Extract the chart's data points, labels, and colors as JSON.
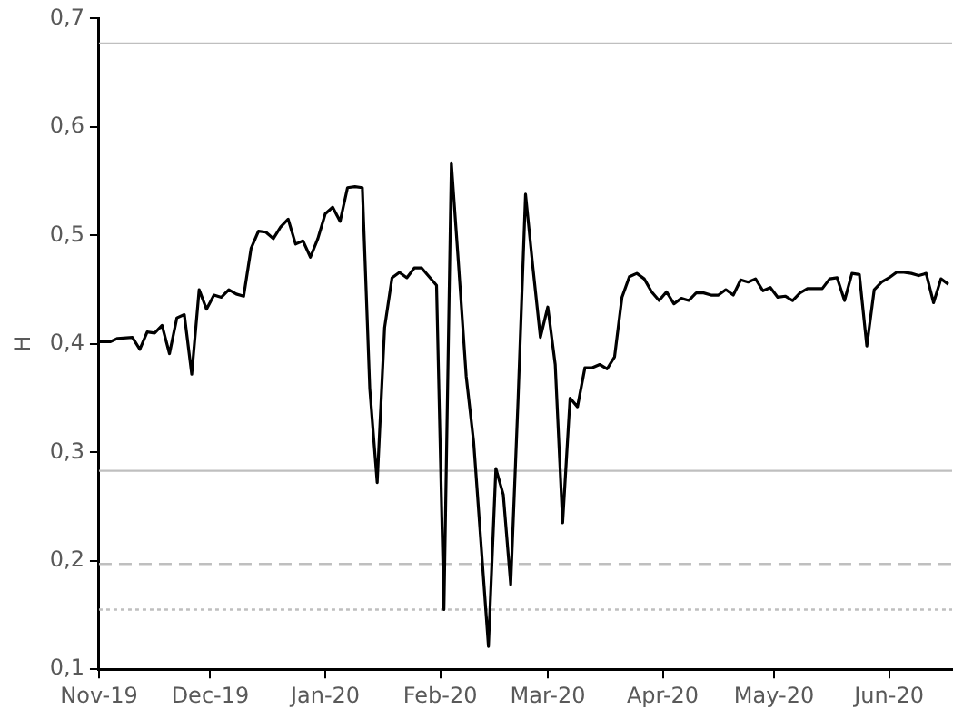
{
  "chart_data": {
    "type": "line",
    "ylabel": "H",
    "x": [
      "2019-11-01",
      "2019-11-04",
      "2019-11-06",
      "2019-11-10",
      "2019-11-12",
      "2019-11-14",
      "2019-11-16",
      "2019-11-18",
      "2019-11-20",
      "2019-11-22",
      "2019-11-24",
      "2019-11-26",
      "2019-11-28",
      "2019-11-30",
      "2019-12-02",
      "2019-12-04",
      "2019-12-06",
      "2019-12-08",
      "2019-12-10",
      "2019-12-12",
      "2019-12-14",
      "2019-12-16",
      "2019-12-18",
      "2019-12-20",
      "2019-12-22",
      "2019-12-24",
      "2019-12-26",
      "2019-12-28",
      "2019-12-30",
      "2020-01-01",
      "2020-01-03",
      "2020-01-05",
      "2020-01-07",
      "2020-01-09",
      "2020-01-11",
      "2020-01-13",
      "2020-01-15",
      "2020-01-17",
      "2020-01-19",
      "2020-01-21",
      "2020-01-23",
      "2020-01-25",
      "2020-01-27",
      "2020-01-29",
      "2020-01-31",
      "2020-02-02",
      "2020-02-04",
      "2020-02-06",
      "2020-02-08",
      "2020-02-10",
      "2020-02-14",
      "2020-02-16",
      "2020-02-18",
      "2020-02-20",
      "2020-02-22",
      "2020-02-24",
      "2020-02-26",
      "2020-02-28",
      "2020-03-01",
      "2020-03-03",
      "2020-03-05",
      "2020-03-07",
      "2020-03-09",
      "2020-03-11",
      "2020-03-13",
      "2020-03-15",
      "2020-03-17",
      "2020-03-19",
      "2020-03-21",
      "2020-03-23",
      "2020-03-25",
      "2020-03-27",
      "2020-03-29",
      "2020-03-31",
      "2020-04-02",
      "2020-04-04",
      "2020-04-06",
      "2020-04-08",
      "2020-04-10",
      "2020-04-12",
      "2020-04-14",
      "2020-04-16",
      "2020-04-18",
      "2020-04-20",
      "2020-04-22",
      "2020-04-24",
      "2020-04-26",
      "2020-04-28",
      "2020-04-30",
      "2020-05-02",
      "2020-05-04",
      "2020-05-06",
      "2020-05-08",
      "2020-05-10",
      "2020-05-12",
      "2020-05-14",
      "2020-05-16",
      "2020-05-18",
      "2020-05-20",
      "2020-05-22",
      "2020-05-24",
      "2020-05-26",
      "2020-05-28",
      "2020-05-30",
      "2020-06-01",
      "2020-06-03",
      "2020-06-05",
      "2020-06-07",
      "2020-06-09",
      "2020-06-11",
      "2020-06-13",
      "2020-06-15",
      "2020-06-17"
    ],
    "series": [
      {
        "color": "#000000",
        "values": [
          0.402,
          0.402,
          0.405,
          0.406,
          0.395,
          0.411,
          0.41,
          0.417,
          0.391,
          0.424,
          0.427,
          0.372,
          0.45,
          0.432,
          0.445,
          0.443,
          0.45,
          0.446,
          0.444,
          0.488,
          0.504,
          0.503,
          0.497,
          0.508,
          0.515,
          0.492,
          0.495,
          0.48,
          0.497,
          0.52,
          0.526,
          0.513,
          0.544,
          0.545,
          0.544,
          0.359,
          0.272,
          0.415,
          0.461,
          0.466,
          0.461,
          0.47,
          0.47,
          0.462,
          0.454,
          0.155,
          0.567,
          0.47,
          0.37,
          0.31,
          0.121,
          0.285,
          0.261,
          0.178,
          0.35,
          0.538,
          0.47,
          0.406,
          0.434,
          0.381,
          0.235,
          0.35,
          0.342,
          0.378,
          0.378,
          0.381,
          0.377,
          0.388,
          0.443,
          0.462,
          0.465,
          0.46,
          0.448,
          0.44,
          0.448,
          0.437,
          0.442,
          0.44,
          0.447,
          0.447,
          0.445,
          0.445,
          0.45,
          0.445,
          0.459,
          0.457,
          0.46,
          0.449,
          0.452,
          0.443,
          0.444,
          0.44,
          0.447,
          0.451,
          0.451,
          0.451,
          0.46,
          0.461,
          0.44,
          0.465,
          0.464,
          0.398,
          0.45,
          0.457,
          0.461,
          0.466,
          0.466,
          0.465,
          0.463,
          0.465,
          0.438,
          0.46,
          0.455
        ]
      }
    ],
    "xlim": [
      "2019-11-01",
      "2020-06-18"
    ],
    "xticks": [
      {
        "value": "2019-11-01",
        "label": "Nov-19"
      },
      {
        "value": "2019-12-01",
        "label": "Dec-19"
      },
      {
        "value": "2020-01-01",
        "label": "Jan-20"
      },
      {
        "value": "2020-02-01",
        "label": "Feb-20"
      },
      {
        "value": "2020-03-01",
        "label": "Mar-20"
      },
      {
        "value": "2020-04-01",
        "label": "Apr-20"
      },
      {
        "value": "2020-05-01",
        "label": "May-20"
      },
      {
        "value": "2020-06-01",
        "label": "Jun-20"
      }
    ],
    "ylim": [
      0.1,
      0.7
    ],
    "yticks": [
      {
        "value": 0.1,
        "label": "0,1"
      },
      {
        "value": 0.2,
        "label": "0,2"
      },
      {
        "value": 0.3,
        "label": "0,3"
      },
      {
        "value": 0.4,
        "label": "0,4"
      },
      {
        "value": 0.5,
        "label": "0,5"
      },
      {
        "value": 0.6,
        "label": "0,6"
      },
      {
        "value": 0.7,
        "label": "0,7"
      }
    ],
    "ref_lines": [
      {
        "axis": "y",
        "value": 0.677,
        "color": "#bfbfbf",
        "line_style": "solid"
      },
      {
        "axis": "y",
        "value": 0.283,
        "color": "#bfbfbf",
        "line_style": "solid"
      },
      {
        "axis": "y",
        "value": 0.197,
        "color": "#bfbfbf",
        "line_style": "dashed"
      },
      {
        "axis": "y",
        "value": 0.155,
        "color": "#bfbfbf",
        "line_style": "dotted"
      }
    ],
    "grid": false,
    "legend": false,
    "marker": "none",
    "line_style": "solid"
  }
}
